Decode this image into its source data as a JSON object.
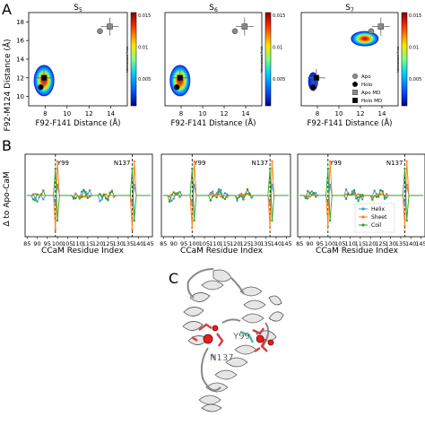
{
  "panel_labels": {
    "a": "A",
    "b": "B",
    "c": "C"
  },
  "panel_a": {
    "titles": [
      "S5",
      "S6",
      "S7"
    ],
    "xlabel": "F92-F141 Distance (Å)",
    "ylabel": "F92-M124 Distance (Å)",
    "xticks": [
      "8",
      "10",
      "12",
      "14"
    ],
    "yticks": [
      "10",
      "12",
      "14",
      "16",
      "18"
    ],
    "colorbar_label": "Normalized Prob.",
    "colorbar_ticks": [
      "0.015",
      "0.01",
      "0.005"
    ],
    "legend": [
      "Apo",
      "Holo",
      "Apo MD",
      "Holo MD"
    ],
    "colors": {
      "apo": "#8a8a8a",
      "holo": "#000000"
    }
  },
  "panel_b": {
    "ylabel": "Δ to Apo-CaM",
    "xlabel": "CCaM Residue Index",
    "xticks": [
      "85",
      "90",
      "95",
      "100",
      "105",
      "110",
      "115",
      "120",
      "125",
      "130",
      "135",
      "140",
      "145"
    ],
    "markers": [
      "Y99",
      "N137"
    ],
    "legend": [
      "Helix",
      "Sheet",
      "Coil"
    ],
    "colors": {
      "helix": "#4a90d9",
      "sheet": "#ff7f0e",
      "coil": "#2ca02c"
    }
  },
  "panel_c": {
    "labels": [
      "Y99",
      "N137"
    ]
  },
  "chart_data": [
    {
      "type": "scatter",
      "title": "S5",
      "xlabel": "F92-F141 Distance (Å)",
      "ylabel": "F92-M124 Distance (Å)",
      "xlim": [
        6.5,
        15.5
      ],
      "ylim": [
        9,
        19
      ],
      "series": [
        {
          "name": "Apo",
          "x": [
            13.0
          ],
          "y": [
            17.0
          ]
        },
        {
          "name": "Holo",
          "x": [
            7.6
          ],
          "y": [
            11.0
          ]
        },
        {
          "name": "Apo MD",
          "x": [
            13.9
          ],
          "y": [
            17.5
          ]
        },
        {
          "name": "Holo MD",
          "x": [
            7.9
          ],
          "y": [
            12.0
          ]
        }
      ]
    },
    {
      "type": "scatter",
      "title": "S6",
      "xlabel": "F92-F141 Distance (Å)",
      "ylabel": "",
      "xlim": [
        6.5,
        15.5
      ],
      "ylim": [
        9,
        19
      ],
      "series": [
        {
          "name": "Apo",
          "x": [
            13.0
          ],
          "y": [
            17.0
          ]
        },
        {
          "name": "Holo",
          "x": [
            7.6
          ],
          "y": [
            11.0
          ]
        },
        {
          "name": "Apo MD",
          "x": [
            13.9
          ],
          "y": [
            17.5
          ]
        },
        {
          "name": "Holo MD",
          "x": [
            7.9
          ],
          "y": [
            12.0
          ]
        }
      ]
    },
    {
      "type": "scatter",
      "title": "S7",
      "xlabel": "F92-F141 Distance (Å)",
      "ylabel": "",
      "xlim": [
        6.5,
        15.5
      ],
      "ylim": [
        9,
        19
      ],
      "series": [
        {
          "name": "Apo",
          "x": [
            13.0
          ],
          "y": [
            17.0
          ]
        },
        {
          "name": "Holo",
          "x": [
            7.6
          ],
          "y": [
            11.0
          ]
        },
        {
          "name": "Apo MD",
          "x": [
            13.9
          ],
          "y": [
            17.5
          ]
        },
        {
          "name": "Holo MD",
          "x": [
            7.9
          ],
          "y": [
            12.0
          ]
        }
      ]
    }
  ]
}
